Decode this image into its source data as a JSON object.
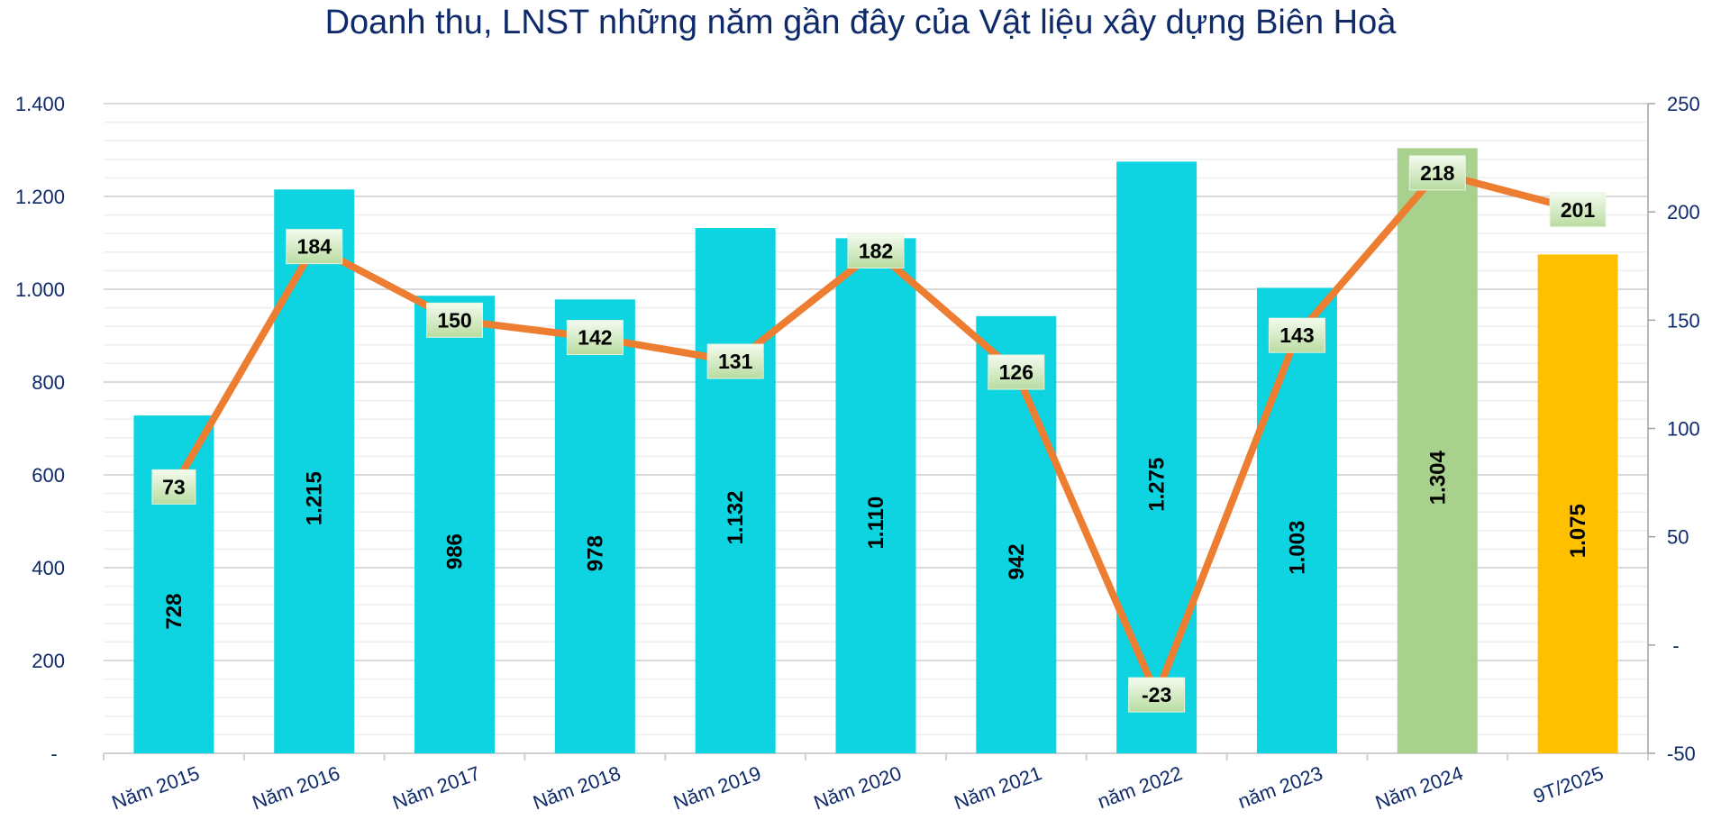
{
  "chart_data": {
    "type": "bar+line",
    "title": "Doanh thu, LNST những năm gần đây của Vật liệu xây dựng Biên Hoà",
    "categories": [
      "Năm 2015",
      "Năm 2016",
      "Năm 2017",
      "Năm 2018",
      "Năm 2019",
      "Năm 2020",
      "Năm 2021",
      "năm 2022",
      "năm 2023",
      "Năm 2024",
      "9T/2025"
    ],
    "bar_series": {
      "values": [
        728,
        1215,
        986,
        978,
        1132,
        1110,
        942,
        1275,
        1003,
        1304,
        1075
      ],
      "value_labels": [
        "728",
        "1.215",
        "986",
        "978",
        "1.132",
        "1.110",
        "942",
        "1.275",
        "1.003",
        "1.304",
        "1.075"
      ],
      "colors": [
        "#0dd4e0",
        "#0dd4e0",
        "#0dd4e0",
        "#0dd4e0",
        "#0dd4e0",
        "#0dd4e0",
        "#0dd4e0",
        "#0dd4e0",
        "#0dd4e0",
        "#a9d18e",
        "#ffc000"
      ],
      "axis": "left"
    },
    "line_series": {
      "values": [
        73,
        184,
        150,
        142,
        131,
        182,
        126,
        -23,
        143,
        218,
        201
      ],
      "color": "#ed7d31",
      "axis": "right"
    },
    "left_axis": {
      "range": [
        0,
        1400
      ],
      "ticks": [
        0,
        200,
        400,
        600,
        800,
        1000,
        1200,
        1400
      ],
      "tick_labels": [
        "-",
        "200",
        "400",
        "600",
        "800",
        "1.000",
        "1.200",
        "1.400"
      ]
    },
    "right_axis": {
      "range": [
        -50,
        250
      ],
      "ticks": [
        -50,
        0,
        50,
        100,
        150,
        200,
        250
      ],
      "tick_labels": [
        "-50",
        "-",
        "50",
        "100",
        "150",
        "200",
        "250"
      ]
    },
    "grid": true,
    "legend": "none"
  }
}
